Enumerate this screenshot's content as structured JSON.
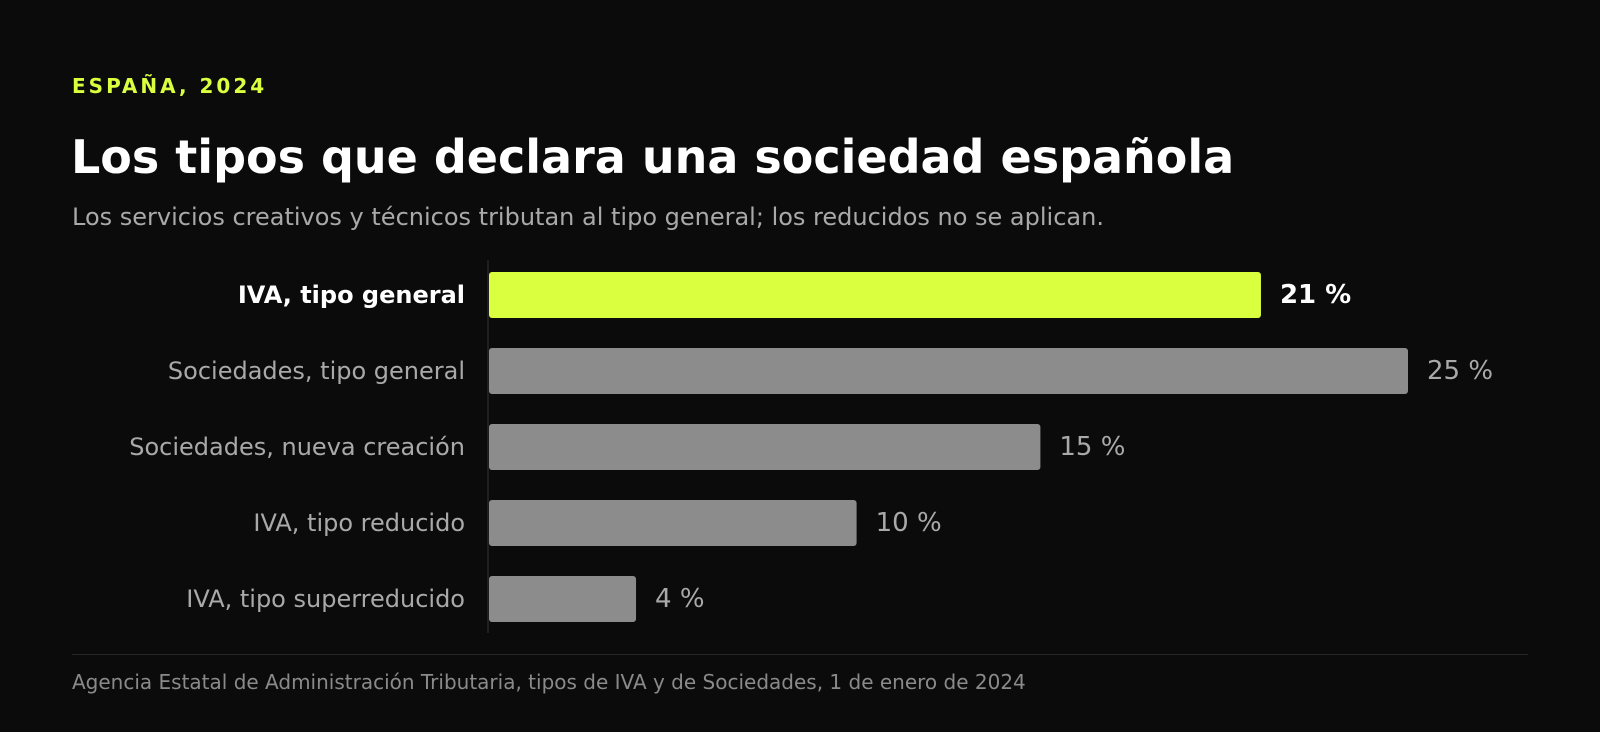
{
  "header": {
    "eyebrow": "ESPAÑA, 2024",
    "title": "Los tipos que declara una sociedad española",
    "subtitle": "Los servicios creativos y técnicos tributan al tipo general; los reducidos no se aplican."
  },
  "footer": {
    "source": "Agencia Estatal de Administración Tributaria, tipos de IVA y de Sociedades, 1 de enero de 2024"
  },
  "colors": {
    "background": "#0b0b0b",
    "highlight": "#d9ff3f",
    "bar": "#8c8c8c",
    "label": "#a9a9a9",
    "highlight_label": "#ffffff"
  },
  "chart_data": {
    "type": "bar",
    "orientation": "horizontal",
    "categories": [
      "IVA, tipo general",
      "Sociedades, tipo general",
      "Sociedades, nueva creación",
      "IVA, tipo reducido",
      "IVA, tipo superreducido"
    ],
    "values": [
      21,
      25,
      15,
      10,
      4
    ],
    "value_labels": [
      "21 %",
      "25 %",
      "15 %",
      "10 %",
      "4 %"
    ],
    "highlight_index": 0,
    "xlim": [
      0,
      25
    ],
    "grid": false,
    "legend": "none"
  }
}
